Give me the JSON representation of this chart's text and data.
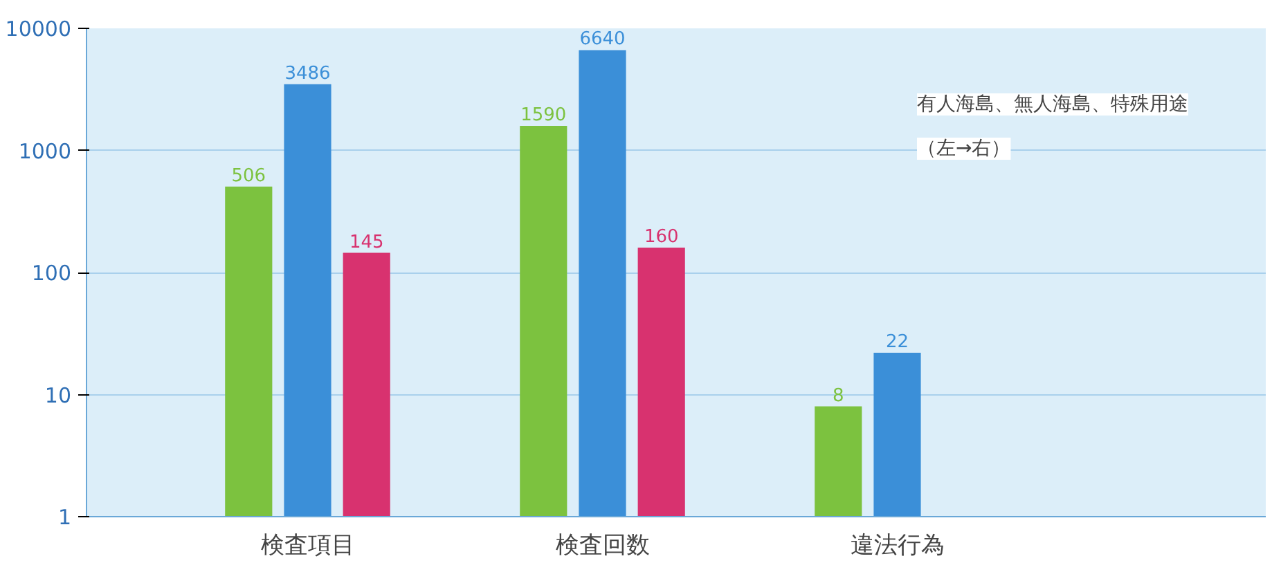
{
  "chart_data": {
    "type": "bar",
    "categories": [
      "検査項目",
      "検査回数",
      "違法行為"
    ],
    "series": [
      {
        "color": "#7cc23f",
        "values": [
          506,
          1590,
          8
        ]
      },
      {
        "color": "#3b8fd8",
        "values": [
          3486,
          6640,
          22
        ]
      },
      {
        "color": "#d8326f",
        "values": [
          145,
          160,
          null
        ]
      }
    ],
    "log": true,
    "ylim": [
      1,
      10000
    ],
    "yticks": [
      1,
      10,
      100,
      1000,
      10000
    ],
    "grid": "y",
    "data_labels": true,
    "annotations": [
      "有人海島、無人海島、特殊用途",
      "（左→右）"
    ]
  }
}
